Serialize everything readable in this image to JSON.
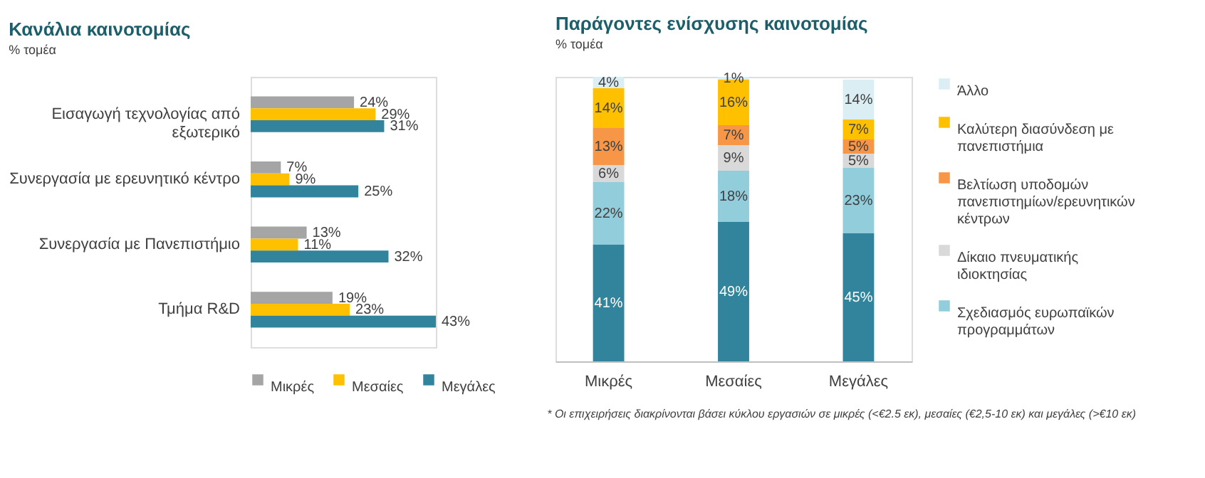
{
  "chart_data": [
    {
      "type": "bar",
      "orientation": "horizontal",
      "title": "Κανάλια καινοτομίας",
      "subtitle": "% τομέα",
      "legend": "bottom",
      "categories": [
        "Εισαγωγή τεχνολογίας από εξωτερικό",
        "Συνεργασία με ερευνητικό κέντρο",
        "Συνεργασία με Πανεπιστήμιο",
        "Τμήμα R&D"
      ],
      "series": [
        {
          "name": "Μικρές",
          "color": "#a5a5a5",
          "values": [
            24,
            7,
            13,
            19
          ],
          "value_labels": [
            "24%",
            "7%",
            "13%",
            "19%"
          ]
        },
        {
          "name": "Μεσαίες",
          "color": "#ffc000",
          "values": [
            29,
            9,
            11,
            23
          ],
          "value_labels": [
            "29%",
            "9%",
            "11%",
            "23%"
          ]
        },
        {
          "name": "Μεγάλες",
          "color": "#31849b",
          "values": [
            31,
            25,
            32,
            43
          ],
          "value_labels": [
            "31%",
            "25%",
            "32%",
            "43%"
          ]
        }
      ]
    },
    {
      "type": "bar",
      "stacked": true,
      "title": "Παράγοντες ενίσχυσης καινοτομίας",
      "subtitle": "% τομέα",
      "legend": "right",
      "categories": [
        "Μικρές",
        "Μεσαίες",
        "Μεγάλες"
      ],
      "series": [
        {
          "color": "#31849b",
          "values": [
            41,
            49,
            45
          ],
          "value_labels": [
            "41%",
            "49%",
            "45%"
          ]
        },
        {
          "name": "Σχεδιασμός ευρωπαϊκών προγραμμάτων",
          "color": "#92cddc",
          "values": [
            22,
            18,
            23
          ],
          "value_labels": [
            "22%",
            "18%",
            "23%"
          ]
        },
        {
          "name": "Δίκαιο πνευματικής ιδιοκτησίας",
          "color": "#d9d9d9",
          "values": [
            6,
            9,
            5
          ],
          "value_labels": [
            "6%",
            "9%",
            "5%"
          ]
        },
        {
          "name": "Βελτίωση υποδομών πανεπιστημίων/ερευνητικών κέντρων",
          "color": "#f79646",
          "values": [
            13,
            7,
            5
          ],
          "value_labels": [
            "13%",
            "7%",
            "5%"
          ]
        },
        {
          "name": "Καλύτερη διασύνδεση με πανεπιστήμια",
          "color": "#ffc000",
          "values": [
            14,
            16,
            7
          ],
          "value_labels": [
            "14%",
            "16%",
            "7%"
          ]
        },
        {
          "name": "Άλλο",
          "color": "#dbeef4",
          "values": [
            4,
            1,
            14
          ],
          "value_labels": [
            "4%",
            "1%",
            "14%"
          ]
        }
      ],
      "annotations": [
        "* Οι επιχειρήσεις διακρίνονται βάσει κύκλου εργασιών σε μικρές (<€2.5 εκ), μεσαίες (€2,5-10 εκ) και μεγάλες (>€10 εκ)"
      ]
    }
  ]
}
